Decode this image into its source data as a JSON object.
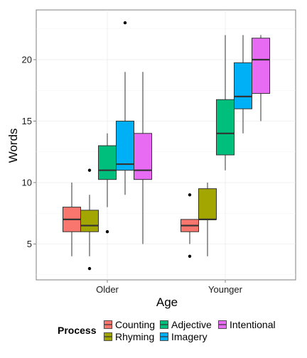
{
  "chart_data": {
    "type": "boxplot",
    "xlabel": "Age",
    "ylabel": "Words",
    "ylim": [
      2,
      24
    ],
    "y_ticks": [
      5,
      10,
      15,
      20
    ],
    "grid": true,
    "legend_position": "bottom",
    "categories": [
      "Older",
      "Younger"
    ],
    "legend": {
      "title": "Process",
      "entries": [
        {
          "name": "Counting",
          "color": "#F8766D"
        },
        {
          "name": "Rhyming",
          "color": "#A3A500"
        },
        {
          "name": "Adjective",
          "color": "#00BF7D"
        },
        {
          "name": "Imagery",
          "color": "#00B0F6"
        },
        {
          "name": "Intentional",
          "color": "#E76BF3"
        }
      ]
    },
    "boxes": [
      {
        "category": "Older",
        "process": "Counting",
        "min": 4,
        "q1": 6,
        "median": 7,
        "q3": 8,
        "max": 10,
        "outliers": []
      },
      {
        "category": "Older",
        "process": "Rhyming",
        "min": 4,
        "q1": 6,
        "median": 6.5,
        "q3": 7.75,
        "max": 9,
        "outliers": [
          3,
          11
        ]
      },
      {
        "category": "Older",
        "process": "Adjective",
        "min": 8,
        "q1": 10.25,
        "median": 11,
        "q3": 13,
        "max": 14,
        "outliers": [
          6
        ]
      },
      {
        "category": "Older",
        "process": "Imagery",
        "min": 9,
        "q1": 11,
        "median": 11.5,
        "q3": 15,
        "max": 19,
        "outliers": [
          23
        ]
      },
      {
        "category": "Older",
        "process": "Intentional",
        "min": 5,
        "q1": 10.25,
        "median": 11,
        "q3": 14,
        "max": 19,
        "outliers": []
      },
      {
        "category": "Younger",
        "process": "Counting",
        "min": 5,
        "q1": 6,
        "median": 6.5,
        "q3": 7,
        "max": 7,
        "outliers": [
          4,
          9
        ]
      },
      {
        "category": "Younger",
        "process": "Rhyming",
        "min": 4,
        "q1": 7,
        "median": 7,
        "q3": 9.5,
        "max": 10,
        "outliers": []
      },
      {
        "category": "Younger",
        "process": "Adjective",
        "min": 11,
        "q1": 12.25,
        "median": 14,
        "q3": 16.75,
        "max": 22,
        "outliers": []
      },
      {
        "category": "Younger",
        "process": "Imagery",
        "min": 14,
        "q1": 16,
        "median": 17,
        "q3": 19.75,
        "max": 22,
        "outliers": []
      },
      {
        "category": "Younger",
        "process": "Intentional",
        "min": 15,
        "q1": 17.25,
        "median": 20,
        "q3": 21.75,
        "max": 22,
        "outliers": []
      }
    ]
  }
}
